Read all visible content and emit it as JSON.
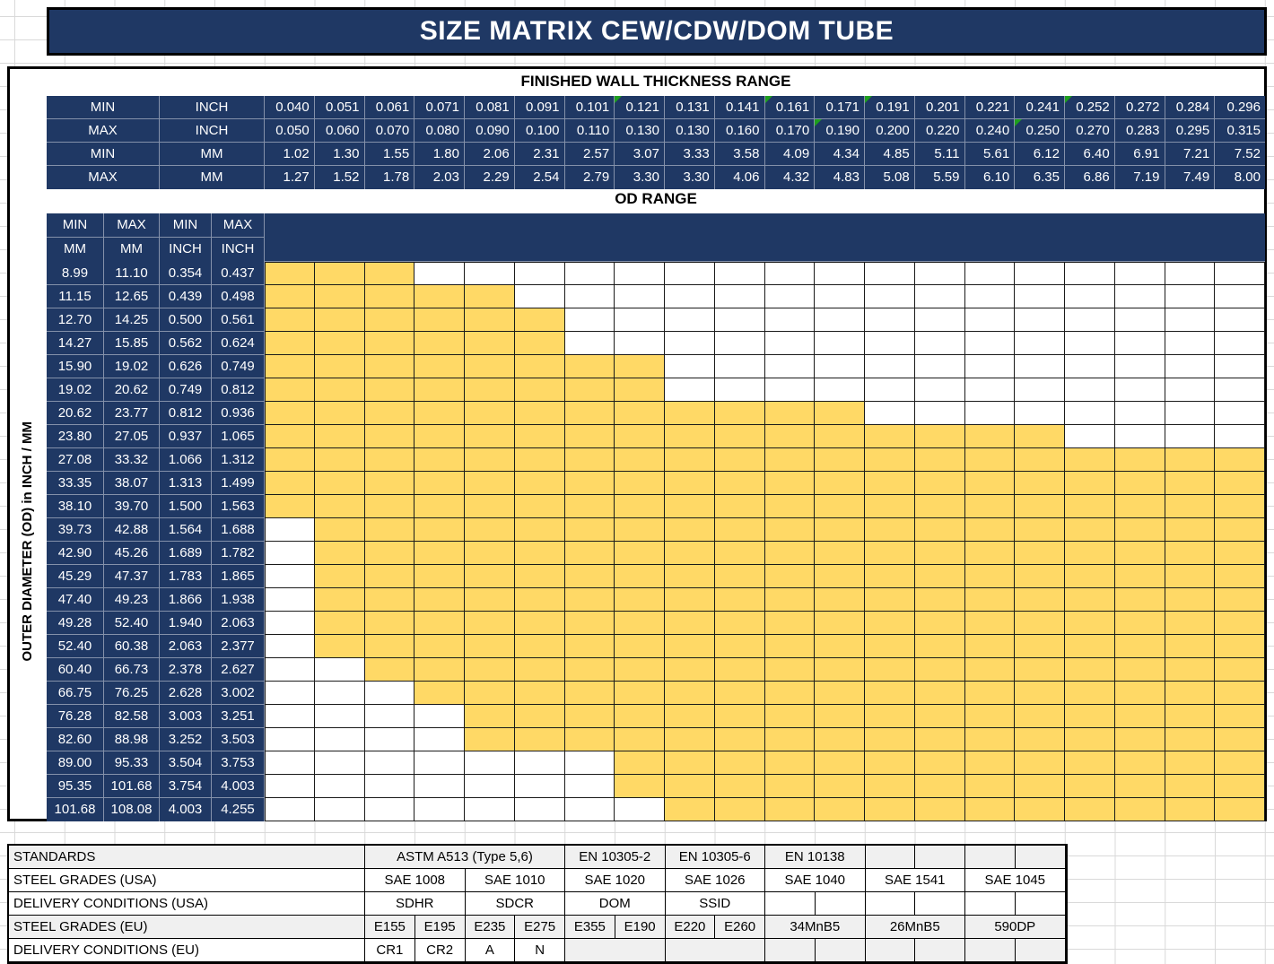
{
  "title": "SIZE MATRIX CEW/CDW/DOM TUBE",
  "colors": {
    "navy": "#1f3864",
    "highlight_yellow": "#ffd966",
    "shade_gray": "#f0f0f0",
    "flag_green": "#1e9e1e",
    "gridline": "#d9d9d9"
  },
  "wall_thickness": {
    "section_title": "FINISHED WALL THICKNESS RANGE",
    "rows": [
      {
        "label": "MIN",
        "unit": "INCH",
        "flags": [
          7,
          10,
          12,
          16
        ],
        "values": [
          "0.040",
          "0.051",
          "0.061",
          "0.071",
          "0.081",
          "0.091",
          "0.101",
          "0.121",
          "0.131",
          "0.141",
          "0.161",
          "0.171",
          "0.191",
          "0.201",
          "0.221",
          "0.241",
          "0.252",
          "0.272",
          "0.284",
          "0.296"
        ]
      },
      {
        "label": "MAX",
        "unit": "INCH",
        "flags": [
          11,
          15
        ],
        "values": [
          "0.050",
          "0.060",
          "0.070",
          "0.080",
          "0.090",
          "0.100",
          "0.110",
          "0.130",
          "0.130",
          "0.160",
          "0.170",
          "0.190",
          "0.200",
          "0.220",
          "0.240",
          "0.250",
          "0.270",
          "0.283",
          "0.295",
          "0.315"
        ]
      },
      {
        "label": "MIN",
        "unit": "MM",
        "flags": [],
        "values": [
          "1.02",
          "1.30",
          "1.55",
          "1.80",
          "2.06",
          "2.31",
          "2.57",
          "3.07",
          "3.33",
          "3.58",
          "4.09",
          "4.34",
          "4.85",
          "5.11",
          "5.61",
          "6.12",
          "6.40",
          "6.91",
          "7.21",
          "7.52"
        ]
      },
      {
        "label": "MAX",
        "unit": "MM",
        "flags": [],
        "values": [
          "1.27",
          "1.52",
          "1.78",
          "2.03",
          "2.29",
          "2.54",
          "2.79",
          "3.30",
          "3.30",
          "4.06",
          "4.32",
          "4.83",
          "5.08",
          "5.59",
          "6.10",
          "6.35",
          "6.86",
          "7.19",
          "7.49",
          "8.00"
        ]
      }
    ]
  },
  "od_range": {
    "section_title": "OD RANGE",
    "axis_label": "OUTER DIAMETER (OD) in INCH / MM",
    "header_row1": [
      "MIN",
      "MAX",
      "MIN",
      "MAX"
    ],
    "header_row2": [
      "MM",
      "MM",
      "INCH",
      "INCH"
    ],
    "rows": [
      {
        "mm": [
          "8.99",
          "11.10"
        ],
        "inch": [
          "0.354",
          "0.437"
        ],
        "fill": [
          1,
          3
        ]
      },
      {
        "mm": [
          "11.15",
          "12.65"
        ],
        "inch": [
          "0.439",
          "0.498"
        ],
        "fill": [
          1,
          5
        ]
      },
      {
        "mm": [
          "12.70",
          "14.25"
        ],
        "inch": [
          "0.500",
          "0.561"
        ],
        "fill": [
          1,
          6
        ]
      },
      {
        "mm": [
          "14.27",
          "15.85"
        ],
        "inch": [
          "0.562",
          "0.624"
        ],
        "fill": [
          1,
          6
        ]
      },
      {
        "mm": [
          "15.90",
          "19.02"
        ],
        "inch": [
          "0.626",
          "0.749"
        ],
        "fill": [
          1,
          8
        ]
      },
      {
        "mm": [
          "19.02",
          "20.62"
        ],
        "inch": [
          "0.749",
          "0.812"
        ],
        "fill": [
          1,
          8
        ]
      },
      {
        "mm": [
          "20.62",
          "23.77"
        ],
        "inch": [
          "0.812",
          "0.936"
        ],
        "fill": [
          1,
          12
        ]
      },
      {
        "mm": [
          "23.80",
          "27.05"
        ],
        "inch": [
          "0.937",
          "1.065"
        ],
        "fill": [
          1,
          16
        ]
      },
      {
        "mm": [
          "27.08",
          "33.32"
        ],
        "inch": [
          "1.066",
          "1.312"
        ],
        "fill": [
          1,
          20
        ]
      },
      {
        "mm": [
          "33.35",
          "38.07"
        ],
        "inch": [
          "1.313",
          "1.499"
        ],
        "fill": [
          1,
          20
        ]
      },
      {
        "mm": [
          "38.10",
          "39.70"
        ],
        "inch": [
          "1.500",
          "1.563"
        ],
        "fill": [
          1,
          20
        ]
      },
      {
        "mm": [
          "39.73",
          "42.88"
        ],
        "inch": [
          "1.564",
          "1.688"
        ],
        "fill": [
          2,
          20
        ]
      },
      {
        "mm": [
          "42.90",
          "45.26"
        ],
        "inch": [
          "1.689",
          "1.782"
        ],
        "fill": [
          2,
          20
        ]
      },
      {
        "mm": [
          "45.29",
          "47.37"
        ],
        "inch": [
          "1.783",
          "1.865"
        ],
        "fill": [
          2,
          20
        ]
      },
      {
        "mm": [
          "47.40",
          "49.23"
        ],
        "inch": [
          "1.866",
          "1.938"
        ],
        "fill": [
          2,
          20
        ]
      },
      {
        "mm": [
          "49.28",
          "52.40"
        ],
        "inch": [
          "1.940",
          "2.063"
        ],
        "fill": [
          2,
          20
        ]
      },
      {
        "mm": [
          "52.40",
          "60.38"
        ],
        "inch": [
          "2.063",
          "2.377"
        ],
        "fill": [
          2,
          20
        ]
      },
      {
        "mm": [
          "60.40",
          "66.73"
        ],
        "inch": [
          "2.378",
          "2.627"
        ],
        "fill": [
          3,
          20
        ]
      },
      {
        "mm": [
          "66.75",
          "76.25"
        ],
        "inch": [
          "2.628",
          "3.002"
        ],
        "fill": [
          4,
          20
        ]
      },
      {
        "mm": [
          "76.28",
          "82.58"
        ],
        "inch": [
          "3.003",
          "3.251"
        ],
        "fill": [
          5,
          20
        ]
      },
      {
        "mm": [
          "82.60",
          "88.98"
        ],
        "inch": [
          "3.252",
          "3.503"
        ],
        "fill": [
          5,
          20
        ]
      },
      {
        "mm": [
          "89.00",
          "95.33"
        ],
        "inch": [
          "3.504",
          "3.753"
        ],
        "fill": [
          8,
          20
        ]
      },
      {
        "mm": [
          "95.35",
          "101.68"
        ],
        "inch": [
          "3.754",
          "4.003"
        ],
        "fill": [
          8,
          20
        ]
      },
      {
        "mm": [
          "101.68",
          "108.08"
        ],
        "inch": [
          "4.003",
          "4.255"
        ],
        "fill": [
          9,
          20
        ]
      }
    ]
  },
  "standards_table": {
    "rows": [
      {
        "label": "STANDARDS",
        "shade": true,
        "cells": [
          [
            "ASTM A513 (Type 5,6)",
            4
          ],
          [
            "EN 10305-2",
            2
          ],
          [
            "EN 10305-6",
            2
          ],
          [
            "EN 10138",
            2
          ],
          [
            "",
            1
          ],
          [
            "",
            1
          ],
          [
            "",
            1
          ],
          [
            "",
            1
          ]
        ]
      },
      {
        "label": "STEEL GRADES (USA)",
        "shade": false,
        "cells": [
          [
            "SAE 1008",
            2
          ],
          [
            "SAE 1010",
            2
          ],
          [
            "SAE 1020",
            2
          ],
          [
            "SAE 1026",
            2
          ],
          [
            "SAE 1040",
            2
          ],
          [
            "SAE 1541",
            2
          ],
          [
            "SAE 1045",
            2
          ]
        ]
      },
      {
        "label": "DELIVERY CONDITIONS (USA)",
        "shade": false,
        "cells": [
          [
            "SDHR",
            2
          ],
          [
            "SDCR",
            2
          ],
          [
            "DOM",
            2
          ],
          [
            "SSID",
            2
          ],
          [
            "",
            1
          ],
          [
            "",
            1
          ],
          [
            "",
            1
          ],
          [
            "",
            1
          ],
          [
            "",
            1
          ],
          [
            "",
            1
          ]
        ]
      },
      {
        "label": "STEEL GRADES (EU)",
        "shade": true,
        "cells": [
          [
            "E155",
            1
          ],
          [
            "E195",
            1
          ],
          [
            "E235",
            1
          ],
          [
            "E275",
            1
          ],
          [
            "E355",
            1
          ],
          [
            "E190",
            1
          ],
          [
            "E220",
            1
          ],
          [
            "E260",
            1
          ],
          [
            "34MnB5",
            2
          ],
          [
            "26MnB5",
            2
          ],
          [
            "590DP",
            2
          ]
        ]
      },
      {
        "label": "DELIVERY CONDITIONS (EU)",
        "shade": false,
        "cells": [
          [
            "CR1",
            1
          ],
          [
            "CR2",
            1
          ],
          [
            "A",
            1
          ],
          [
            "N",
            1
          ],
          [
            "",
            2,
            true
          ],
          [
            "",
            2,
            true
          ],
          [
            "",
            1,
            true
          ],
          [
            "",
            1,
            true
          ],
          [
            "",
            1,
            true
          ],
          [
            "",
            1,
            true
          ],
          [
            "",
            1,
            true
          ],
          [
            "",
            1,
            true
          ]
        ]
      }
    ]
  }
}
